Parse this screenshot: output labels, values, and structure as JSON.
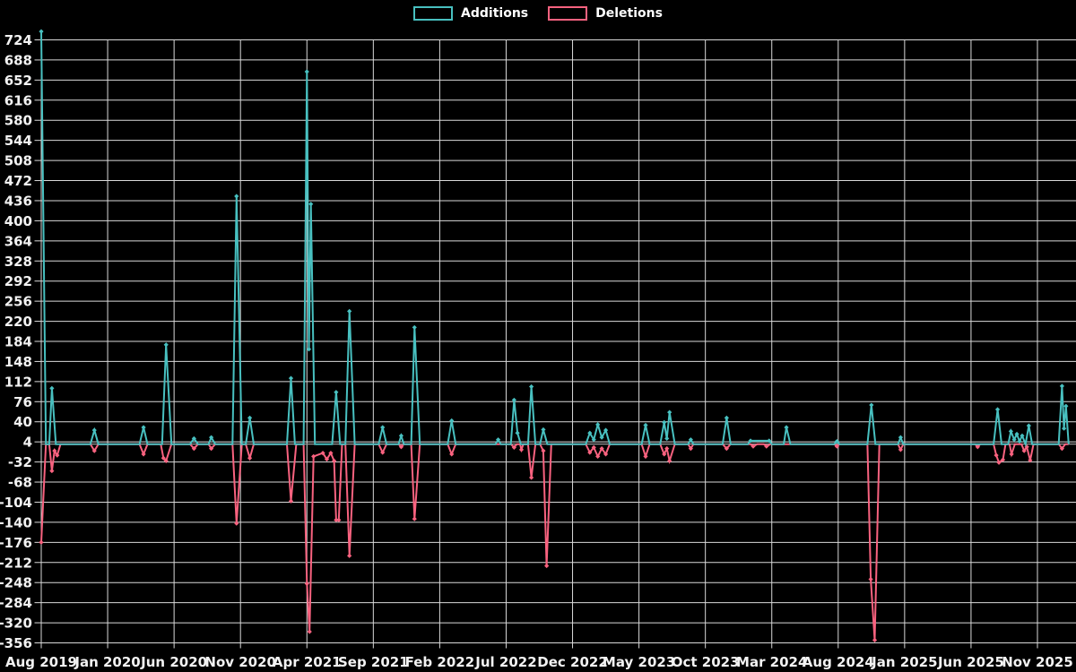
{
  "legend": {
    "additions_label": "Additions",
    "deletions_label": "Deletions"
  },
  "colors": {
    "background": "#000000",
    "grid": "#d9d9d9",
    "zero_axis": "#9a9a9a",
    "tick_text": "#f2f2f2",
    "additions": "#48c0c0",
    "deletions": "#f8627f"
  },
  "chart_data": {
    "type": "line",
    "title": "",
    "xlabel": "",
    "ylabel": "",
    "x_unit": "months since Aug 2019 (weekly commit activity)",
    "ylim": [
      -356,
      724
    ],
    "y_tick_step": 36,
    "y_ticks": [
      724,
      688,
      652,
      616,
      580,
      544,
      508,
      472,
      436,
      400,
      364,
      328,
      292,
      256,
      220,
      184,
      148,
      112,
      76,
      40,
      4,
      -32,
      -68,
      -104,
      -140,
      -176,
      -212,
      -248,
      -284,
      -320,
      -356
    ],
    "x_tick_labels": [
      "Aug 2019",
      "Jan 2020",
      "Jun 2020",
      "Nov 2020",
      "Apr 2021",
      "Sep 2021",
      "Feb 2022",
      "Jul 2022",
      "Dec 2022",
      "May 2023",
      "Oct 2023",
      "Mar 2024",
      "Aug 2024",
      "Jan 2025",
      "Jun 2025",
      "Nov 2025"
    ],
    "x_tick_months": [
      0,
      5,
      10,
      15,
      20,
      25,
      30,
      35,
      40,
      45,
      50,
      55,
      60,
      65,
      70,
      75
    ],
    "grid": true,
    "legend_position": "top-center",
    "marker": "diamond",
    "series": [
      {
        "name": "Additions",
        "color": "#48c0c0",
        "points": [
          [
            0,
            739
          ],
          [
            0.35,
            0
          ],
          [
            0.6,
            0
          ],
          [
            0.8,
            100
          ],
          [
            1.1,
            0
          ],
          [
            3.7,
            0
          ],
          [
            4.0,
            25
          ],
          [
            4.3,
            0
          ],
          [
            7.4,
            0
          ],
          [
            7.7,
            30
          ],
          [
            8.0,
            0
          ],
          [
            9.1,
            0
          ],
          [
            9.4,
            178
          ],
          [
            9.8,
            0
          ],
          [
            11.2,
            0
          ],
          [
            11.5,
            10
          ],
          [
            11.8,
            0
          ],
          [
            12.6,
            0
          ],
          [
            12.8,
            12
          ],
          [
            13.1,
            0
          ],
          [
            14.4,
            0
          ],
          [
            14.7,
            444
          ],
          [
            15.1,
            0
          ],
          [
            15.4,
            0
          ],
          [
            15.7,
            47
          ],
          [
            16.0,
            0
          ],
          [
            18.5,
            0
          ],
          [
            18.8,
            118
          ],
          [
            19.1,
            0
          ],
          [
            19.75,
            0
          ],
          [
            20.0,
            667
          ],
          [
            20.15,
            170
          ],
          [
            20.3,
            430
          ],
          [
            20.6,
            0
          ],
          [
            21.3,
            0
          ],
          [
            21.9,
            0
          ],
          [
            22.2,
            93
          ],
          [
            22.5,
            0
          ],
          [
            22.9,
            0
          ],
          [
            23.2,
            238
          ],
          [
            23.6,
            0
          ],
          [
            25.4,
            0
          ],
          [
            25.7,
            30
          ],
          [
            26.0,
            0
          ],
          [
            26.9,
            0
          ],
          [
            27.1,
            15
          ],
          [
            27.3,
            0
          ],
          [
            27.85,
            0
          ],
          [
            28.1,
            209
          ],
          [
            28.5,
            0
          ],
          [
            30.6,
            0
          ],
          [
            30.9,
            42
          ],
          [
            31.2,
            0
          ],
          [
            34.2,
            0
          ],
          [
            34.4,
            8
          ],
          [
            34.6,
            0
          ],
          [
            35.35,
            0
          ],
          [
            35.6,
            79
          ],
          [
            35.85,
            20
          ],
          [
            36.1,
            0
          ],
          [
            36.65,
            0
          ],
          [
            36.9,
            103
          ],
          [
            37.2,
            0
          ],
          [
            37.55,
            0
          ],
          [
            37.8,
            26
          ],
          [
            38.1,
            0
          ],
          [
            41.0,
            0
          ],
          [
            41.3,
            20
          ],
          [
            41.6,
            8
          ],
          [
            41.9,
            35
          ],
          [
            42.2,
            12
          ],
          [
            42.5,
            25
          ],
          [
            42.8,
            0
          ],
          [
            45.2,
            0
          ],
          [
            45.5,
            34
          ],
          [
            45.8,
            0
          ],
          [
            46.6,
            0
          ],
          [
            46.9,
            39
          ],
          [
            47.1,
            10
          ],
          [
            47.3,
            57
          ],
          [
            47.7,
            0
          ],
          [
            48.7,
            0
          ],
          [
            48.9,
            8
          ],
          [
            49.1,
            0
          ],
          [
            51.3,
            0
          ],
          [
            51.6,
            47
          ],
          [
            51.9,
            0
          ],
          [
            53.2,
            0
          ],
          [
            53.4,
            6
          ],
          [
            54.8,
            6
          ],
          [
            55.0,
            0
          ],
          [
            55.9,
            0
          ],
          [
            56.1,
            30
          ],
          [
            56.4,
            0
          ],
          [
            59.7,
            0
          ],
          [
            59.9,
            5
          ],
          [
            60.1,
            0
          ],
          [
            62.2,
            0
          ],
          [
            62.5,
            70
          ],
          [
            62.8,
            0
          ],
          [
            64.5,
            0
          ],
          [
            64.7,
            12
          ],
          [
            64.9,
            0
          ],
          [
            70.3,
            0
          ],
          [
            71.7,
            0
          ],
          [
            72.0,
            62
          ],
          [
            72.3,
            0
          ],
          [
            72.8,
            0
          ],
          [
            73.0,
            23
          ],
          [
            73.25,
            8
          ],
          [
            73.45,
            18
          ],
          [
            73.65,
            5
          ],
          [
            73.85,
            15
          ],
          [
            74.1,
            0
          ],
          [
            74.35,
            33
          ],
          [
            74.6,
            0
          ],
          [
            76.6,
            0
          ],
          [
            76.85,
            104
          ],
          [
            77.0,
            28
          ],
          [
            77.15,
            68
          ],
          [
            77.35,
            0
          ]
        ]
      },
      {
        "name": "Deletions",
        "color": "#f8627f",
        "points": [
          [
            0,
            -176
          ],
          [
            0.35,
            0
          ],
          [
            0.6,
            0
          ],
          [
            0.8,
            -48
          ],
          [
            1.0,
            -12
          ],
          [
            1.2,
            -20
          ],
          [
            1.45,
            0
          ],
          [
            3.7,
            0
          ],
          [
            4.0,
            -12
          ],
          [
            4.3,
            0
          ],
          [
            7.4,
            0
          ],
          [
            7.7,
            -18
          ],
          [
            8.0,
            0
          ],
          [
            9.0,
            0
          ],
          [
            9.2,
            -25
          ],
          [
            9.4,
            -30
          ],
          [
            9.8,
            0
          ],
          [
            11.2,
            0
          ],
          [
            11.5,
            -8
          ],
          [
            11.8,
            0
          ],
          [
            12.6,
            0
          ],
          [
            12.8,
            -8
          ],
          [
            13.1,
            0
          ],
          [
            14.4,
            0
          ],
          [
            14.7,
            -142
          ],
          [
            15.1,
            0
          ],
          [
            15.4,
            0
          ],
          [
            15.7,
            -25
          ],
          [
            16.0,
            0
          ],
          [
            18.5,
            0
          ],
          [
            18.8,
            -102
          ],
          [
            19.2,
            0
          ],
          [
            19.75,
            0
          ],
          [
            20.0,
            -250
          ],
          [
            20.2,
            -336
          ],
          [
            20.5,
            -22
          ],
          [
            21.2,
            -16
          ],
          [
            21.5,
            -27
          ],
          [
            21.8,
            -16
          ],
          [
            22.05,
            -30
          ],
          [
            22.2,
            -136
          ],
          [
            22.4,
            -136
          ],
          [
            22.65,
            0
          ],
          [
            22.9,
            0
          ],
          [
            23.2,
            -200
          ],
          [
            23.6,
            0
          ],
          [
            25.4,
            0
          ],
          [
            25.7,
            -15
          ],
          [
            26.0,
            0
          ],
          [
            26.9,
            0
          ],
          [
            27.1,
            -5
          ],
          [
            27.3,
            0
          ],
          [
            27.85,
            0
          ],
          [
            28.1,
            -134
          ],
          [
            28.5,
            0
          ],
          [
            30.6,
            0
          ],
          [
            30.9,
            -18
          ],
          [
            31.2,
            0
          ],
          [
            35.35,
            0
          ],
          [
            35.6,
            -6
          ],
          [
            35.8,
            0
          ],
          [
            36.05,
            0
          ],
          [
            36.15,
            -10
          ],
          [
            36.3,
            0
          ],
          [
            36.65,
            0
          ],
          [
            36.9,
            -60
          ],
          [
            37.2,
            0
          ],
          [
            37.55,
            0
          ],
          [
            37.8,
            -12
          ],
          [
            38.05,
            -218
          ],
          [
            38.4,
            0
          ],
          [
            41.0,
            0
          ],
          [
            41.3,
            -15
          ],
          [
            41.6,
            -6
          ],
          [
            41.9,
            -22
          ],
          [
            42.2,
            -8
          ],
          [
            42.5,
            -18
          ],
          [
            42.8,
            0
          ],
          [
            45.2,
            0
          ],
          [
            45.5,
            -22
          ],
          [
            45.8,
            0
          ],
          [
            46.6,
            0
          ],
          [
            46.9,
            -18
          ],
          [
            47.1,
            -8
          ],
          [
            47.3,
            -30
          ],
          [
            47.7,
            0
          ],
          [
            48.7,
            0
          ],
          [
            48.9,
            -8
          ],
          [
            49.1,
            0
          ],
          [
            51.3,
            0
          ],
          [
            51.6,
            -8
          ],
          [
            51.9,
            0
          ],
          [
            53.4,
            0
          ],
          [
            53.6,
            -4
          ],
          [
            53.9,
            0
          ],
          [
            54.4,
            0
          ],
          [
            54.6,
            -4
          ],
          [
            54.9,
            0
          ],
          [
            59.7,
            0
          ],
          [
            59.9,
            -4
          ],
          [
            60.1,
            0
          ],
          [
            62.2,
            0
          ],
          [
            62.45,
            -242
          ],
          [
            62.75,
            -351
          ],
          [
            63.1,
            0
          ],
          [
            64.5,
            0
          ],
          [
            64.7,
            -10
          ],
          [
            64.9,
            0
          ],
          [
            70.3,
            0
          ],
          [
            70.5,
            -5
          ],
          [
            70.7,
            0
          ],
          [
            71.7,
            0
          ],
          [
            71.9,
            -20
          ],
          [
            72.1,
            -33
          ],
          [
            72.4,
            -28
          ],
          [
            72.6,
            0
          ],
          [
            72.9,
            0
          ],
          [
            73.05,
            -18
          ],
          [
            73.3,
            0
          ],
          [
            73.8,
            0
          ],
          [
            74.0,
            -12
          ],
          [
            74.2,
            -5
          ],
          [
            74.45,
            -29
          ],
          [
            74.7,
            0
          ],
          [
            76.6,
            0
          ],
          [
            76.85,
            -8
          ],
          [
            77.1,
            0
          ],
          [
            77.35,
            0
          ]
        ]
      }
    ]
  }
}
